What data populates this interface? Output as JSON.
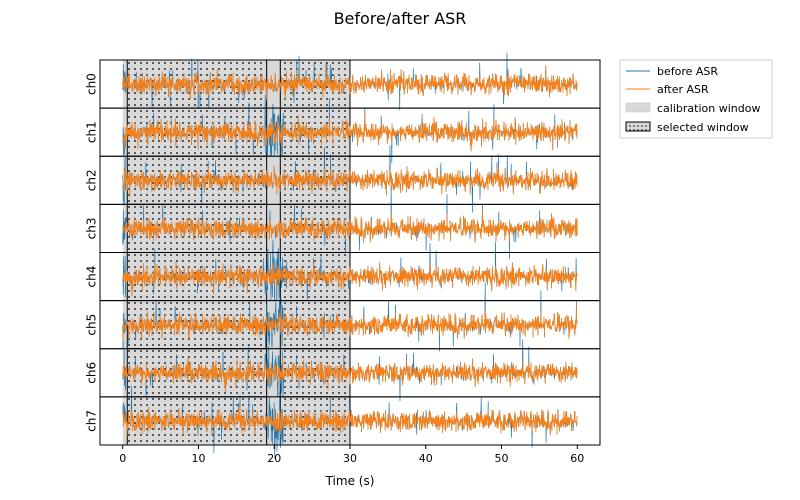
{
  "chart_data": {
    "type": "line",
    "title": "Before/after ASR",
    "xlabel": "Time (s)",
    "xlim": [
      -3,
      63
    ],
    "xticks": [
      0,
      10,
      20,
      30,
      40,
      50,
      60
    ],
    "channels": [
      "ch0",
      "ch1",
      "ch2",
      "ch3",
      "ch4",
      "ch5",
      "ch6",
      "ch7"
    ],
    "series": [
      {
        "name": "before ASR",
        "color": "#1f77b4",
        "t_start": 0,
        "t_end": 60
      },
      {
        "name": "after ASR",
        "color": "#ff7f0e",
        "t_start": 0,
        "t_end": 60
      }
    ],
    "calibration_windows": [
      [
        0,
        30
      ]
    ],
    "selected_windows": [
      [
        0.6,
        19.0
      ],
      [
        20.8,
        30.0
      ]
    ],
    "legend": {
      "placement": "outside-top-right",
      "entries": [
        "before ASR",
        "after ASR",
        "calibration window",
        "selected window"
      ]
    },
    "grid": false
  }
}
